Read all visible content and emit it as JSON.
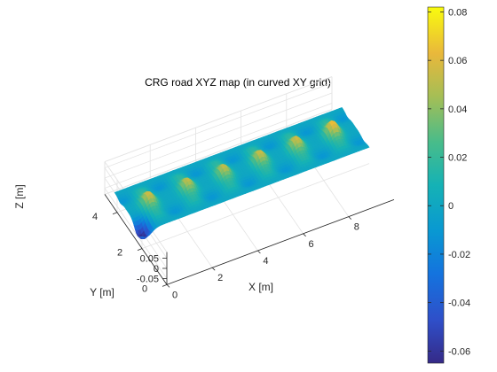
{
  "chart_data": {
    "type": "surface3d",
    "title": "CRG road XYZ map (in curved XY grid)",
    "xlabel": "X [m]",
    "ylabel": "Y [m]",
    "zlabel": "Z [m]",
    "xlim": [
      0,
      10
    ],
    "ylim": [
      0,
      5
    ],
    "zlim": [
      -0.08,
      0.08
    ],
    "x_ticks": [
      "0",
      "2",
      "4",
      "6",
      "8"
    ],
    "y_ticks": [
      "0",
      "2",
      "4"
    ],
    "z_ticks": [
      "0.05",
      "0",
      "-0.05"
    ],
    "grid": true,
    "road": {
      "x_range": [
        0,
        10
      ],
      "y_range": [
        2,
        4.2
      ],
      "bumps": [
        {
          "x": 0.9,
          "y": 3.1,
          "z": 0.06
        },
        {
          "x": 2.6,
          "y": 3.1,
          "z": 0.055
        },
        {
          "x": 4.2,
          "y": 3.1,
          "z": 0.055
        },
        {
          "x": 5.8,
          "y": 3.1,
          "z": 0.058
        },
        {
          "x": 7.4,
          "y": 3.1,
          "z": 0.06
        },
        {
          "x": 9.0,
          "y": 3.1,
          "z": 0.07
        },
        {
          "x": 0.2,
          "y": 2.3,
          "z": -0.06
        }
      ]
    },
    "colorbar": {
      "ticks": [
        "0.08",
        "0.06",
        "0.04",
        "0.02",
        "0",
        "-0.02",
        "-0.04",
        "-0.06"
      ],
      "values": [
        0.08,
        0.06,
        0.04,
        0.02,
        0,
        -0.02,
        -0.04,
        -0.06
      ],
      "range": [
        -0.065,
        0.082
      ],
      "colormap": "parula"
    }
  }
}
